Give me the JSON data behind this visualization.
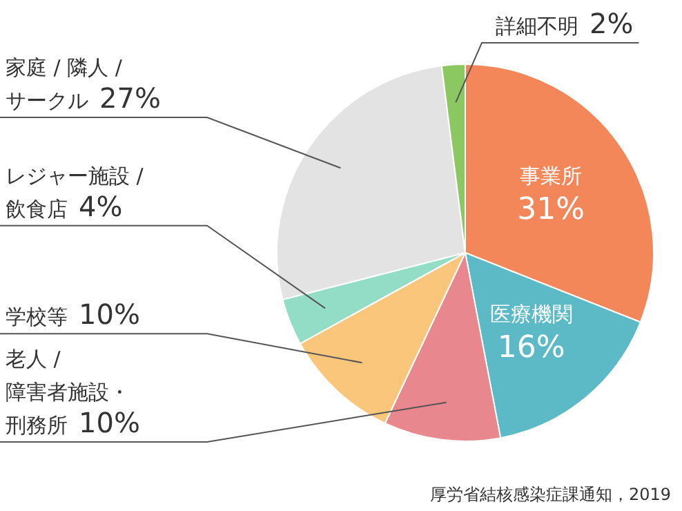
{
  "chart_data": {
    "type": "pie",
    "categories": [
      "事業所",
      "医療機関",
      "老人 / 障害者施設・刑務所",
      "学校等",
      "レジャー施設 / 飲食店",
      "家庭 / 隣人 / サークル",
      "詳細不明"
    ],
    "values": [
      31,
      16,
      10,
      10,
      4,
      27,
      2
    ],
    "colors": [
      "#f4875a",
      "#5bbac6",
      "#e9878f",
      "#fac67c",
      "#93dcc6",
      "#e3e3e3",
      "#8cc862"
    ],
    "value_labels": [
      "31%",
      "16%",
      "10%",
      "10%",
      "4%",
      "27%",
      "2%"
    ],
    "annotations": [
      "厚労省結核感染症課通知，2019"
    ]
  }
}
